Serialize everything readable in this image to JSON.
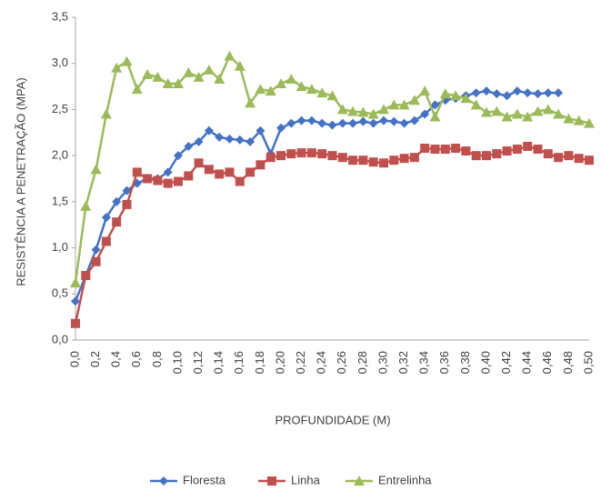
{
  "chart_data": {
    "type": "line",
    "x_label": "PROFUNDIDADE (M)",
    "y_label": "RESISTÊNCIA A PENETRAÇÃO (MPA)",
    "categories": [
      "0,0",
      null,
      "0,2",
      null,
      "0,4",
      null,
      "0,6",
      null,
      "0,8",
      null,
      "0,10",
      null,
      "0,12",
      null,
      "0,14",
      null,
      "0,16",
      null,
      "0,18",
      null,
      "0,20",
      null,
      "0,22",
      null,
      "0,24",
      null,
      "0,26",
      null,
      "0,28",
      null,
      "0,30",
      null,
      "0,32",
      null,
      "0,34",
      null,
      "0,36",
      null,
      "0,38",
      null,
      "0,40",
      null,
      "0,42",
      null,
      "0,44",
      null,
      "0,46",
      null,
      "0,48",
      null,
      "0,50"
    ],
    "ylim": [
      0,
      3.5
    ],
    "yticks": [
      {
        "value": 0,
        "label": "0,0"
      },
      {
        "value": 0.5,
        "label": "0,5"
      },
      {
        "value": 1,
        "label": "1,0"
      },
      {
        "value": 1.5,
        "label": "1,5"
      },
      {
        "value": 2,
        "label": "2,0"
      },
      {
        "value": 2.5,
        "label": "2,5"
      },
      {
        "value": 3,
        "label": "3,0"
      },
      {
        "value": 3.5,
        "label": "3,5"
      }
    ],
    "grid": false,
    "legend": "bottom",
    "series": [
      {
        "name": "Floresta",
        "color": "#4472c4",
        "marker": "diamond",
        "values": [
          0.42,
          0.7,
          0.98,
          1.33,
          1.5,
          1.62,
          1.7,
          1.75,
          1.75,
          1.82,
          2.0,
          2.1,
          2.15,
          2.27,
          2.2,
          2.18,
          2.17,
          2.15,
          2.27,
          2.02,
          2.3,
          2.35,
          2.38,
          2.38,
          2.35,
          2.33,
          2.35,
          2.35,
          2.37,
          2.35,
          2.38,
          2.37,
          2.35,
          2.38,
          2.45,
          2.55,
          2.6,
          2.62,
          2.65,
          2.68,
          2.7,
          2.67,
          2.65,
          2.7,
          2.68,
          2.67,
          2.68,
          2.68,
          null,
          null,
          null
        ]
      },
      {
        "name": "Linha",
        "color": "#c0504d",
        "marker": "square",
        "values": [
          0.18,
          0.7,
          0.85,
          1.07,
          1.28,
          1.47,
          1.82,
          1.75,
          1.73,
          1.7,
          1.72,
          1.78,
          1.92,
          1.85,
          1.8,
          1.82,
          1.72,
          1.82,
          1.9,
          1.98,
          2.0,
          2.02,
          2.03,
          2.03,
          2.02,
          2.0,
          1.98,
          1.95,
          1.95,
          1.93,
          1.92,
          1.95,
          1.97,
          1.98,
          2.08,
          2.07,
          2.07,
          2.08,
          2.05,
          2.0,
          2.0,
          2.02,
          2.05,
          2.07,
          2.1,
          2.07,
          2.02,
          1.98,
          2.0,
          1.97,
          1.95
        ]
      },
      {
        "name": "Entrelinha",
        "color": "#9bbb59",
        "marker": "triangle",
        "values": [
          0.62,
          1.45,
          1.85,
          2.45,
          2.95,
          3.02,
          2.72,
          2.88,
          2.85,
          2.78,
          2.78,
          2.9,
          2.85,
          2.93,
          2.83,
          3.08,
          2.97,
          2.57,
          2.72,
          2.7,
          2.78,
          2.83,
          2.75,
          2.72,
          2.68,
          2.65,
          2.5,
          2.48,
          2.47,
          2.45,
          2.5,
          2.55,
          2.55,
          2.6,
          2.7,
          2.42,
          2.67,
          2.65,
          2.62,
          2.55,
          2.47,
          2.48,
          2.42,
          2.45,
          2.42,
          2.48,
          2.5,
          2.45,
          2.4,
          2.38,
          2.35
        ]
      }
    ]
  }
}
